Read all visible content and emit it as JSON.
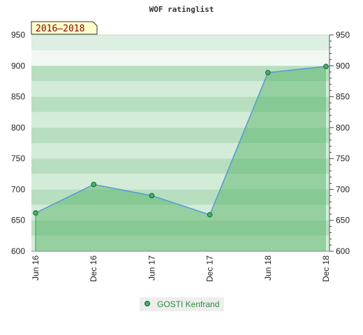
{
  "title": "WOF ratinglist",
  "period_badge": "2016–2018",
  "colors": {
    "line": "#5b9bd5",
    "marker": "#3cb371",
    "band_light": "#e8f5ea",
    "band_dark": "#c9e8cf",
    "fill": "#5cb96d",
    "badge_bg": "#ffffcc",
    "legend_text": "#2e8b3a"
  },
  "chart_data": {
    "type": "area",
    "title": "WOF ratinglist",
    "x": [
      "Jun 16",
      "Dec 16",
      "Jun 17",
      "Dec 17",
      "Jun 18",
      "Dec 18"
    ],
    "series": [
      {
        "name": "GOSTI Kenfrand",
        "values": [
          662,
          708,
          690,
          659,
          889,
          899
        ]
      }
    ],
    "ylim": [
      600,
      950
    ],
    "yticks": [
      600,
      650,
      700,
      750,
      800,
      850,
      900,
      950
    ],
    "y_axis_left": true,
    "y_axis_right": true,
    "grid": "horizontal bands",
    "legend": "bottom-center",
    "xlabel": "",
    "ylabel": ""
  }
}
